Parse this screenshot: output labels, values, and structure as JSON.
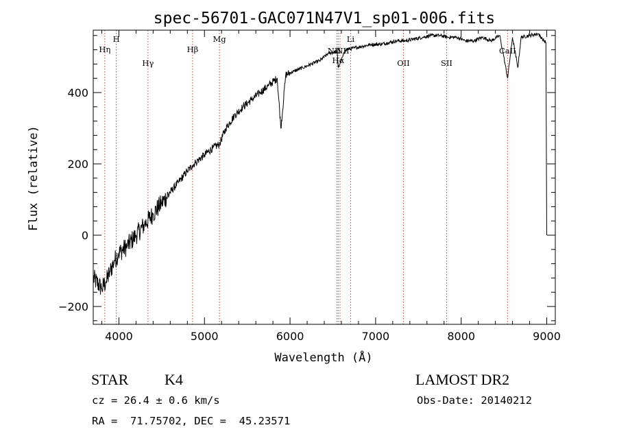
{
  "chart_data": {
    "type": "line",
    "title": "spec-56701-GAC071N47V1_sp01-006.fits",
    "xlabel": "Wavelength (Å)",
    "ylabel": "Flux (relative)",
    "xlim": [
      3700,
      9100
    ],
    "ylim": [
      -250,
      575
    ],
    "xticks": [
      4000,
      5000,
      6000,
      7000,
      8000,
      9000
    ],
    "yticks": [
      -200,
      0,
      200,
      400
    ],
    "xtick_labels": [
      "4000",
      "5000",
      "6000",
      "7000",
      "8000",
      "9000"
    ],
    "ytick_labels": [
      "−200",
      "0",
      "200",
      "400"
    ],
    "series": [
      {
        "name": "flux",
        "x": [
          3700,
          3800,
          3850,
          3900,
          3950,
          4000,
          4100,
          4200,
          4300,
          4400,
          4500,
          4600,
          4700,
          4800,
          4860,
          4900,
          5000,
          5100,
          5175,
          5250,
          5350,
          5450,
          5550,
          5650,
          5750,
          5850,
          5893,
          5950,
          6050,
          6150,
          6250,
          6350,
          6450,
          6550,
          6563,
          6650,
          6750,
          6850,
          6950,
          7050,
          7150,
          7250,
          7350,
          7450,
          7550,
          7650,
          7750,
          7850,
          7950,
          8050,
          8150,
          8250,
          8350,
          8450,
          8498,
          8542,
          8600,
          8662,
          8700,
          8800,
          8900,
          8950,
          8990,
          9000
        ],
        "y": [
          -120,
          -150,
          -130,
          -100,
          -70,
          -50,
          -30,
          0,
          30,
          60,
          90,
          120,
          150,
          180,
          195,
          205,
          225,
          245,
          255,
          300,
          335,
          360,
          380,
          400,
          420,
          440,
          300,
          450,
          460,
          470,
          480,
          490,
          510,
          515,
          470,
          520,
          525,
          530,
          535,
          535,
          540,
          545,
          545,
          550,
          555,
          560,
          560,
          555,
          555,
          545,
          545,
          555,
          545,
          560,
          500,
          440,
          555,
          470,
          555,
          560,
          565,
          550,
          540,
          0
        ]
      }
    ],
    "spectral_lines": [
      {
        "name": "Hη",
        "wavelength": 3835
      },
      {
        "name": "H",
        "wavelength": 3970
      },
      {
        "name": "Hγ",
        "wavelength": 4340
      },
      {
        "name": "Hβ",
        "wavelength": 4861
      },
      {
        "name": "Mg",
        "wavelength": 5175
      },
      {
        "name": "NII",
        "wavelength": 6548
      },
      {
        "name": "Hα",
        "wavelength": 6563
      },
      {
        "name": "NII",
        "wavelength": 6584
      },
      {
        "name": "Li",
        "wavelength": 6708
      },
      {
        "name": "OII",
        "wavelength": 7325
      },
      {
        "name": "SII",
        "wavelength": 7830
      },
      {
        "name": "CaII",
        "wavelength": 8542
      }
    ]
  },
  "info": {
    "class": "STAR",
    "subclass": "K4",
    "survey": "LAMOST DR2",
    "redshift": "cz = 26.4 ± 0.6 km/s",
    "obs_date": "Obs-Date: 20140212",
    "coords": "RA =  71.75702, DEC =  45.23571"
  },
  "colors": {
    "line_marker": "#c0392b",
    "spectrum": "#000000"
  }
}
